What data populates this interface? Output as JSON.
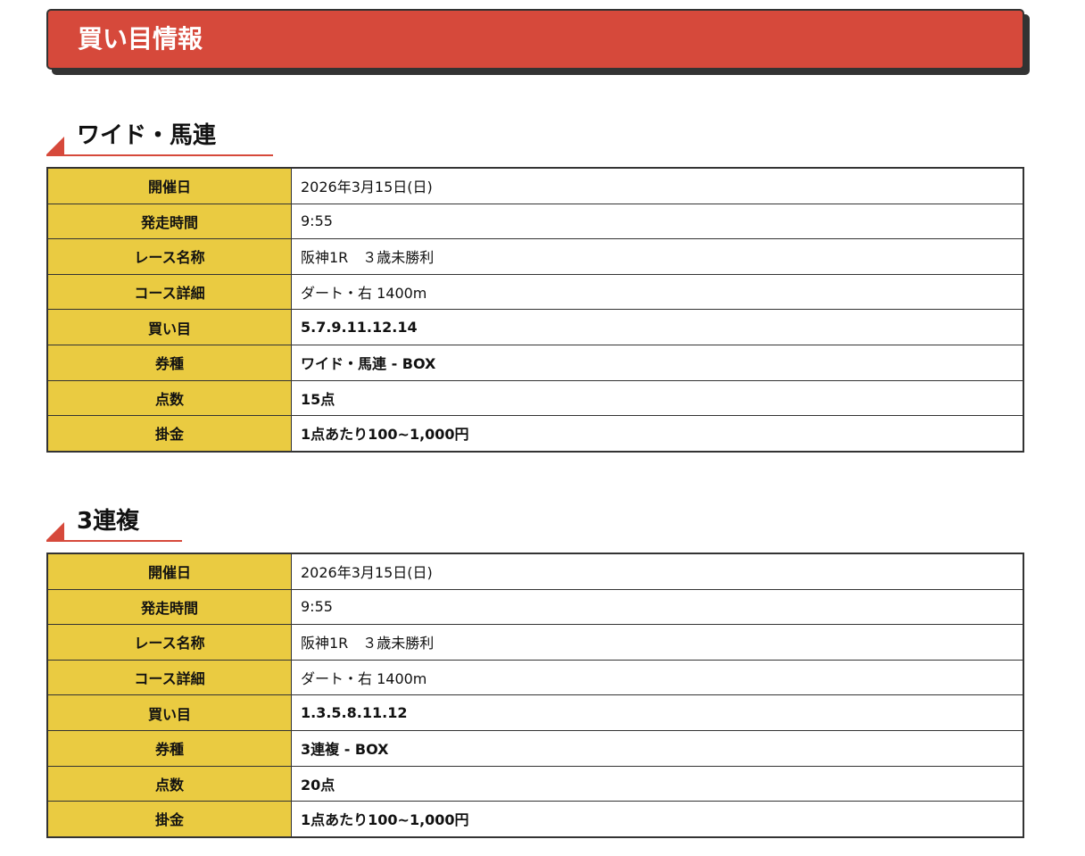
{
  "title": "買い目情報",
  "colors": {
    "accent_red": "#d6493b",
    "label_yellow": "#eacb41",
    "border": "#333333"
  },
  "sections": [
    {
      "heading": "ワイド・馬連",
      "rows": [
        {
          "label": "開催日",
          "value": "2026年3月15日(日)"
        },
        {
          "label": "発走時間",
          "value": "9:55"
        },
        {
          "label": "レース名称",
          "value": "阪神1R　３歳未勝利"
        },
        {
          "label": "コース詳細",
          "value": "ダート・右 1400m"
        },
        {
          "label": "買い目",
          "value": "5.7.9.11.12.14"
        },
        {
          "label": "券種",
          "value": "ワイド・馬連 - BOX"
        },
        {
          "label": "点数",
          "value": "15点"
        },
        {
          "label": "掛金",
          "value": "1点あたり100~1,000円"
        }
      ]
    },
    {
      "heading": "3連複",
      "rows": [
        {
          "label": "開催日",
          "value": "2026年3月15日(日)"
        },
        {
          "label": "発走時間",
          "value": "9:55"
        },
        {
          "label": "レース名称",
          "value": "阪神1R　３歳未勝利"
        },
        {
          "label": "コース詳細",
          "value": "ダート・右 1400m"
        },
        {
          "label": "買い目",
          "value": "1.3.5.8.11.12"
        },
        {
          "label": "券種",
          "value": "3連複 - BOX"
        },
        {
          "label": "点数",
          "value": "20点"
        },
        {
          "label": "掛金",
          "value": "1点あたり100~1,000円"
        }
      ]
    }
  ]
}
